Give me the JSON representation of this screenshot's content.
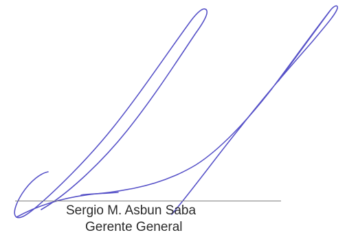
{
  "signature": {
    "name": "Sergio M. Asbun Saba",
    "title": "Gerente General",
    "ink_color": "#5752c8",
    "line_color": "#7b7b7b",
    "text_color": "#2a2a2a"
  }
}
